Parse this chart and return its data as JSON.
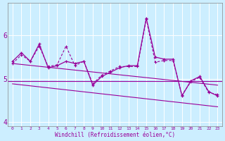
{
  "xlabel": "Windchill (Refroidissement éolien,°C)",
  "bg_color": "#cceeff",
  "line_color": "#990099",
  "x_data": [
    0,
    1,
    2,
    3,
    4,
    5,
    6,
    7,
    8,
    9,
    10,
    11,
    12,
    13,
    14,
    15,
    16,
    17,
    18,
    19,
    20,
    21,
    22,
    23
  ],
  "y_line1": [
    5.4,
    5.6,
    5.4,
    5.8,
    5.25,
    5.3,
    5.4,
    5.35,
    5.4,
    4.85,
    5.05,
    5.15,
    5.25,
    5.3,
    5.3,
    6.4,
    5.5,
    5.45,
    5.45,
    4.6,
    4.95,
    5.05,
    4.7,
    4.6
  ],
  "y_line2": [
    5.35,
    5.55,
    5.4,
    5.75,
    5.28,
    5.32,
    5.75,
    5.3,
    5.4,
    4.88,
    5.08,
    5.18,
    5.28,
    5.28,
    5.28,
    6.38,
    5.38,
    5.42,
    5.42,
    4.62,
    4.93,
    5.03,
    4.68,
    4.63
  ],
  "linear_upper_start": 5.35,
  "linear_upper_end": 4.85,
  "linear_lower_start": 4.88,
  "linear_lower_end": 4.35,
  "hline_y": 4.95,
  "ylim": [
    3.9,
    6.75
  ],
  "xlim": [
    -0.5,
    23.5
  ],
  "yticks": [
    4,
    5,
    6
  ],
  "xticks": [
    0,
    1,
    2,
    3,
    4,
    5,
    6,
    7,
    8,
    9,
    10,
    11,
    12,
    13,
    14,
    15,
    16,
    17,
    18,
    19,
    20,
    21,
    22,
    23
  ]
}
